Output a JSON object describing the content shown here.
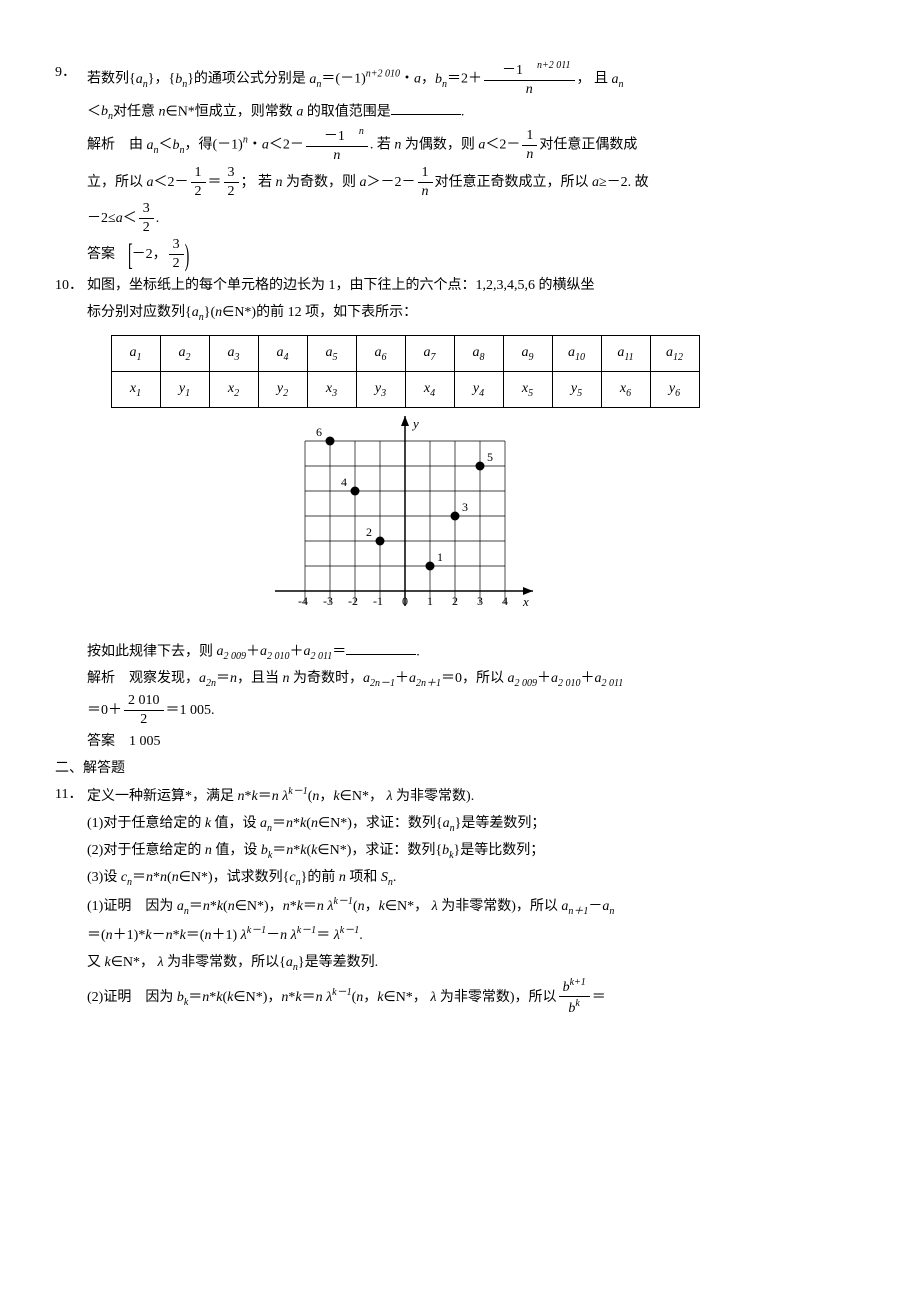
{
  "q9": {
    "number": "9．",
    "line1_a": "若数列{",
    "line1_b": "}，{",
    "line1_c": "}的通项公式分别是 ",
    "line1_d": "＝(－1)",
    "line1_e": "・",
    "line1_f": "，",
    "line1_g": "＝2＋",
    "frac1_num": "－1",
    "line1_h": "， 且 ",
    "line2_a": "＜",
    "line2_b": "对任意 ",
    "line2_c": "∈N*恒成立，则常数 ",
    "line2_d": " 的取值范围是",
    "sol_label": "解析　由 ",
    "sol_a": "＜",
    "sol_b": "，得(－1)",
    "sol_c": "・",
    "sol_d": "＜2－",
    "sol_e": ". 若 ",
    "sol_f": " 为偶数，则 ",
    "sol_g": "＜2－",
    "sol_h": "对任意正偶数成",
    "sol_i": "立，所以 ",
    "sol_j": "＜2－",
    "sol_k": "＝",
    "sol_l": "； 若 ",
    "sol_m": " 为奇数，则 ",
    "sol_n": "＞－2－",
    "sol_o": "对任意正奇数成立，所以 ",
    "sol_p": "≥－2. 故",
    "sol_q": "－2≤",
    "sol_r": "＜",
    "ans_label": "答案　",
    "ans_a": "－2，",
    "one": "1",
    "two": "2",
    "three": "3",
    "a": "a",
    "b": "b",
    "n": "n",
    "exp1": "n+2 010",
    "exp2": "n+2 011",
    "period": "."
  },
  "q10": {
    "number": "10．",
    "line1": "如图，坐标纸上的每个单元格的边长为 1，由下往上的六个点：1,2,3,4,5,6 的横纵坐",
    "line2_a": "标分别对应数列{",
    "line2_b": "}(",
    "line2_c": "∈N*)的前 12 项，如下表所示：",
    "headers": [
      "a",
      "a",
      "a",
      "a",
      "a",
      "a",
      "a",
      "a",
      "a",
      "a",
      "a",
      "a"
    ],
    "hsubs": [
      "1",
      "2",
      "3",
      "4",
      "5",
      "6",
      "7",
      "8",
      "9",
      "10",
      "11",
      "12"
    ],
    "row2": [
      "x",
      "y",
      "x",
      "y",
      "x",
      "y",
      "x",
      "y",
      "x",
      "y",
      "x",
      "y"
    ],
    "r2subs": [
      "1",
      "1",
      "2",
      "2",
      "3",
      "3",
      "4",
      "4",
      "5",
      "5",
      "6",
      "6"
    ],
    "q_a": "按如此规律下去，则 ",
    "q_b": "＋",
    "q_c": "＋",
    "q_d": "＝",
    "sol_label": "解析　观察发现，",
    "sol_a": "＝",
    "sol_b": "，且当 ",
    "sol_c": " 为奇数时，",
    "sol_d": "＋",
    "sol_e": "＝0，所以 ",
    "sol_f": "＋",
    "sol_g": "＋",
    "sol_h": "＝0＋",
    "sol_i": "＝1 005.",
    "frac_num": "2 010",
    "frac_den": "2",
    "ans": "答案　1 005",
    "a": "a",
    "n": "n",
    "s2009": "2 009",
    "s2010": "2 010",
    "s2011": "2 011",
    "s2n": "2n",
    "s2nm1": "2n－1",
    "s2np1": "2n＋1",
    "period": ".",
    "axis_labels": [
      "-4",
      "-3",
      "-2",
      "-1",
      "0",
      "1",
      "2",
      "3",
      "4"
    ],
    "y_label": "y",
    "x_label": "x",
    "point_labels": [
      "1",
      "2",
      "3",
      "4",
      "5",
      "6"
    ],
    "grid_color": "#000000",
    "point_color": "#000000"
  },
  "section2": "二、解答题",
  "q11": {
    "number": "11．",
    "line1_a": "定义一种新运算*，满足 ",
    "line1_b": "*",
    "line1_c": "＝",
    "line1_d": "(",
    "line1_e": "，",
    "line1_f": "∈N*， ",
    "line1_g": " 为非零常数).",
    "p1_a": "(1)对于任意给定的 ",
    "p1_b": " 值，设 ",
    "p1_c": "＝",
    "p1_d": "*",
    "p1_e": "(",
    "p1_f": "∈N*)，求证：数列{",
    "p1_g": "}是等差数列；",
    "p2_a": "(2)对于任意给定的 ",
    "p2_b": " 值，设 ",
    "p2_c": "＝",
    "p2_d": "*",
    "p2_e": "(",
    "p2_f": "∈N*)，求证：数列{",
    "p2_g": "}是等比数列；",
    "p3_a": "(3)设 ",
    "p3_b": "＝",
    "p3_c": "*",
    "p3_d": "(",
    "p3_e": "∈N*)，试求数列{",
    "p3_f": "}的前 ",
    "p3_g": " 项和 ",
    "proof1_label": "(1)证明　因为 ",
    "proof1_a": "＝",
    "proof1_b": "*",
    "proof1_c": "(",
    "proof1_d": "∈N*)，",
    "proof1_e": "*",
    "proof1_f": "＝",
    "proof1_g": "(",
    "proof1_h": "，",
    "proof1_i": "∈N*， ",
    "proof1_j": " 为非零常数)，所以 ",
    "proof1_k": "－",
    "proof1_l": "＝(",
    "proof1_m": "＋1)*",
    "proof1_n": "－",
    "proof1_o": "*",
    "proof1_p": "＝(",
    "proof1_q": "＋1) ",
    "proof1_r": "－",
    "proof1_s": " ",
    "proof1_t": "＝ ",
    "proof1_u": "又 ",
    "proof1_v": "∈N*， ",
    "proof1_w": " 为非零常数，所以{",
    "proof1_x": "}是等差数列.",
    "proof2_label": "(2)证明　因为 ",
    "proof2_a": "＝",
    "proof2_b": "*",
    "proof2_c": "(",
    "proof2_d": "∈N*)，",
    "proof2_e": "*",
    "proof2_f": "＝",
    "proof2_g": "(",
    "proof2_h": "，",
    "proof2_i": "∈N*， ",
    "proof2_j": " 为非零常数)，所以",
    "proof2_k": "＝",
    "n": "n",
    "k": "k",
    "a": "a",
    "b": "b",
    "c": "c",
    "S": "S",
    "lambda": "λ",
    "km1": "k－1",
    "np1": "n＋1",
    "period": ".",
    "bkp1": "b",
    "supkp1": "k+1",
    "supk": "k"
  }
}
